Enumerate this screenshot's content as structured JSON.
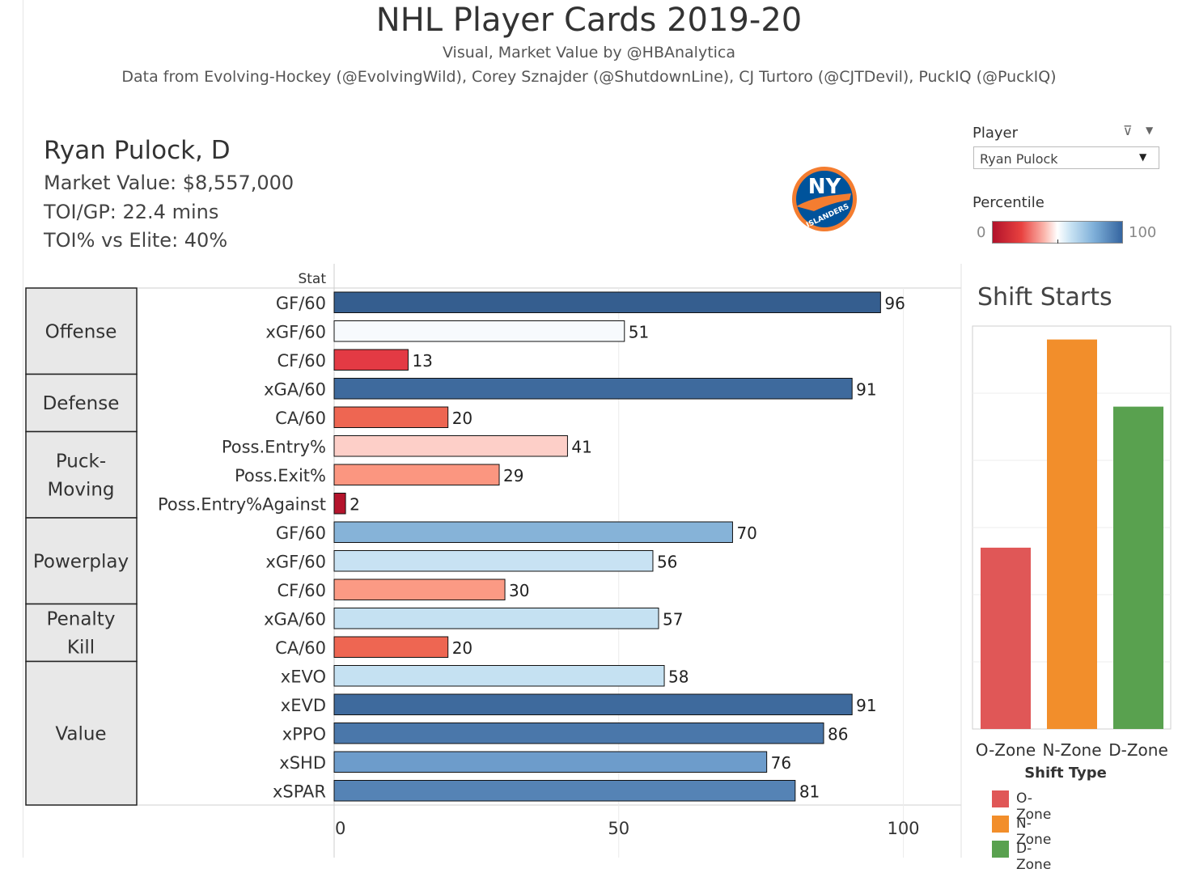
{
  "header": {
    "title": "NHL Player Cards 2019-20",
    "subtitle": "Visual, Market Value by @HBAnalytica",
    "credits": "Data from Evolving-Hockey (@EvolvingWild), Corey Sznajder (@ShutdownLine), CJ Turtoro (@CJTDevil), PuckIQ (@PuckIQ)"
  },
  "player": {
    "name": "Ryan Pulock, D",
    "market_value": "Market Value: $8,557,000",
    "toi_gp": "TOI/GP: 22.4 mins",
    "toi_elite": "TOI% vs Elite: 40%",
    "team_logo_icon": "new-york-islanders-logo",
    "logo_text": "NY",
    "logo_banner": "ISLANDERS"
  },
  "filters": {
    "player_label": "Player",
    "player_value": "Ryan Pulock",
    "filter_icon": "clear-filter-icon",
    "percentile_label": "Percentile",
    "percentile_min": "0",
    "percentile_max": "100"
  },
  "chart_data": [
    {
      "type": "bar",
      "orientation": "horizontal",
      "column_header": "Stat",
      "xlim": [
        0,
        100
      ],
      "x_ticks": [
        "0",
        "50",
        "100"
      ],
      "color_scale": {
        "low": "#b1122b",
        "mid": "#ffffff",
        "high": "#3565a0"
      },
      "groups": [
        {
          "name": "Offense",
          "rows": [
            0,
            2
          ]
        },
        {
          "name": "Defense",
          "rows": [
            3,
            4
          ]
        },
        {
          "name": "Puck-Moving",
          "lines": [
            "Puck-",
            "Moving"
          ],
          "rows": [
            5,
            7
          ]
        },
        {
          "name": "Powerplay",
          "rows": [
            8,
            10
          ]
        },
        {
          "name": "Penalty Kill",
          "lines": [
            "Penalty",
            "Kill"
          ],
          "rows": [
            11,
            12
          ]
        },
        {
          "name": "Value",
          "rows": [
            13,
            17
          ]
        }
      ],
      "categories": [
        "GF/60",
        "xGF/60",
        "CF/60",
        "xGA/60",
        "CA/60",
        "Poss.Entry%",
        "Poss.Exit%",
        "Poss.Entry%Against",
        "GF/60",
        "xGF/60",
        "CF/60",
        "xGA/60",
        "CA/60",
        "xEVO",
        "xEVD",
        "xPPO",
        "xSHD",
        "xSPAR"
      ],
      "values": [
        96,
        51,
        13,
        91,
        20,
        41,
        29,
        2,
        70,
        56,
        30,
        57,
        20,
        58,
        91,
        86,
        76,
        81
      ],
      "colors": [
        "#355e8f",
        "#f7fafd",
        "#e33a44",
        "#3e6a9d",
        "#ee6652",
        "#fdcfc8",
        "#fb9680",
        "#b4142c",
        "#86b3d8",
        "#c8e2f3",
        "#fb9a84",
        "#c5e1f2",
        "#ee6652",
        "#c5e1f2",
        "#3e6a9d",
        "#4a77aa",
        "#6d9ccb",
        "#5583b5"
      ]
    },
    {
      "type": "bar",
      "title": "Shift Starts",
      "xlabel": "Shift Type",
      "categories": [
        "O-Zone",
        "N-Zone",
        "D-Zone"
      ],
      "values": [
        0.27,
        0.58,
        0.48
      ],
      "colors": [
        "#e05757",
        "#f28e2b",
        "#59a14f"
      ],
      "grid": true,
      "legend": {
        "title": "Shift Type",
        "position": "bottom-right",
        "items": [
          {
            "label": "O-Zone",
            "color": "#e05757"
          },
          {
            "label": "N-Zone",
            "color": "#f28e2b"
          },
          {
            "label": "D-Zone",
            "color": "#59a14f"
          }
        ]
      }
    }
  ]
}
